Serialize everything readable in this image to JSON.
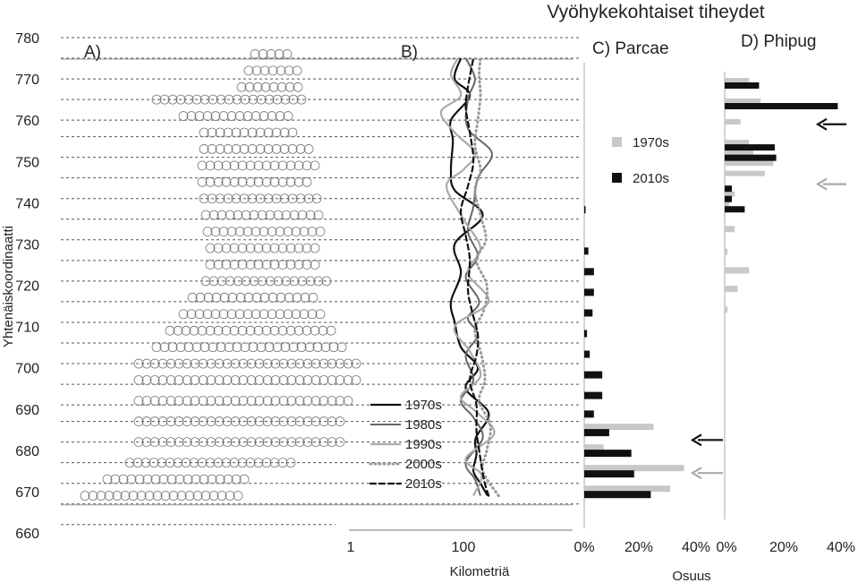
{
  "chart_data": {
    "type": "multi-panel",
    "title": "Vyöhykekohtaiset tiheydet",
    "y_axis": {
      "label": "Yhtenäiskoordinaatti",
      "ticks": [
        780,
        770,
        760,
        750,
        740,
        730,
        720,
        710,
        700,
        690,
        680,
        670,
        660
      ],
      "range": [
        660,
        780
      ]
    },
    "zone_boundaries": [
      662,
      667,
      672,
      677,
      682,
      687,
      691,
      696,
      701,
      706,
      711,
      716,
      721,
      726,
      731,
      736,
      741,
      746,
      751,
      756,
      760,
      765,
      770,
      775,
      780
    ],
    "panels": {
      "A": {
        "label": "A)",
        "description_type": "map"
      },
      "B": {
        "label": "B)",
        "type": "line",
        "xlabel": "Kilometriä",
        "x_ticks": [
          "1",
          "100"
        ],
        "x_scale": "log",
        "legend": [
          "1970s",
          "1980s",
          "1990s",
          "2000s",
          "2010s"
        ],
        "series": [
          {
            "name": "1970s",
            "points": [
              [
                268,
                669
              ],
              [
                200,
                672
              ],
              [
                150,
                675
              ],
              [
                170,
                679
              ],
              [
                165,
                683
              ],
              [
                280,
                689
              ],
              [
                110,
                695
              ],
              [
                180,
                700
              ],
              [
                90,
                705
              ],
              [
                70,
                711
              ],
              [
                60,
                716
              ],
              [
                90,
                723
              ],
              [
                70,
                730
              ],
              [
                220,
                737
              ],
              [
                70,
                743
              ],
              [
                60,
                748
              ],
              [
                65,
                755
              ],
              [
                60,
                760
              ],
              [
                130,
                766
              ],
              [
                70,
                770
              ],
              [
                90,
                775
              ]
            ]
          },
          {
            "name": "1980s",
            "points": [
              [
                200,
                669
              ],
              [
                160,
                673
              ],
              [
                110,
                677
              ],
              [
                220,
                683
              ],
              [
                150,
                688
              ],
              [
                90,
                692
              ],
              [
                150,
                697
              ],
              [
                110,
                703
              ],
              [
                180,
                708
              ],
              [
                120,
                712
              ],
              [
                190,
                716
              ],
              [
                110,
                722
              ],
              [
                180,
                727
              ],
              [
                120,
                733
              ],
              [
                150,
                739
              ],
              [
                180,
                746
              ],
              [
                320,
                752
              ],
              [
                120,
                758
              ],
              [
                120,
                765
              ],
              [
                160,
                770
              ],
              [
                110,
                775
              ]
            ]
          },
          {
            "name": "1990s",
            "points": [
              [
                150,
                669
              ],
              [
                210,
                674
              ],
              [
                110,
                678
              ],
              [
                350,
                684
              ],
              [
                180,
                689
              ],
              [
                90,
                693
              ],
              [
                200,
                698
              ],
              [
                130,
                704
              ],
              [
                70,
                710
              ],
              [
                280,
                716
              ],
              [
                120,
                723
              ],
              [
                200,
                729
              ],
              [
                100,
                736
              ],
              [
                50,
                744
              ],
              [
                100,
                748
              ],
              [
                160,
                752
              ],
              [
                70,
                757
              ],
              [
                40,
                762
              ],
              [
                90,
                766
              ],
              [
                60,
                771
              ],
              [
                80,
                775
              ]
            ]
          },
          {
            "name": "2000s",
            "points": [
              [
                420,
                669
              ],
              [
                220,
                675
              ],
              [
                260,
                680
              ],
              [
                300,
                686
              ],
              [
                190,
                692
              ],
              [
                240,
                697
              ],
              [
                210,
                703
              ],
              [
                160,
                709
              ],
              [
                230,
                714
              ],
              [
                260,
                720
              ],
              [
                170,
                726
              ],
              [
                250,
                731
              ],
              [
                200,
                737
              ],
              [
                160,
                743
              ],
              [
                200,
                748
              ],
              [
                160,
                754
              ],
              [
                180,
                760
              ],
              [
                200,
                766
              ],
              [
                190,
                771
              ],
              [
                200,
                775
              ]
            ]
          },
          {
            "name": "2010s",
            "points": [
              [
                280,
                669
              ],
              [
                230,
                673
              ],
              [
                190,
                680
              ],
              [
                170,
                685
              ],
              [
                170,
                691
              ],
              [
                130,
                697
              ],
              [
                170,
                703
              ],
              [
                180,
                708
              ],
              [
                140,
                714
              ],
              [
                120,
                719
              ],
              [
                130,
                726
              ],
              [
                110,
                732
              ],
              [
                90,
                738
              ],
              [
                120,
                744
              ],
              [
                150,
                750
              ],
              [
                130,
                757
              ],
              [
                110,
                763
              ],
              [
                120,
                768
              ],
              [
                150,
                775
              ]
            ]
          }
        ]
      },
      "C": {
        "label": "C) Parcae",
        "type": "bar",
        "xlabel": "Osuus",
        "x_ticks": [
          "0%",
          "20%",
          "40%"
        ],
        "xlim": [
          0,
          40
        ],
        "legend": [
          "1970s",
          "2010s"
        ],
        "zones_y": [
          669.5,
          674.5,
          679.5,
          684.5,
          689,
          693.5,
          698.5,
          703.5,
          708.5,
          713.5,
          718.5,
          723.5,
          728.5,
          733.5,
          738.5,
          743.5,
          748.5,
          753.5,
          758,
          762.5,
          767.5,
          772.5,
          777.5
        ],
        "series": [
          {
            "name": "1970s",
            "values": [
              31,
              36,
              7,
              25,
              0,
              0,
              0,
              0,
              0,
              0,
              0,
              0,
              0,
              0,
              0,
              0,
              0,
              0,
              0,
              0,
              0,
              0,
              0
            ]
          },
          {
            "name": "2010s",
            "values": [
              24,
              18,
              17,
              9,
              3.5,
              6.5,
              6.5,
              2,
              1,
              3,
              3.5,
              3.5,
              1.5,
              0,
              0.5,
              0,
              0,
              0,
              0,
              0,
              0,
              0,
              0
            ]
          }
        ],
        "arrows": [
          {
            "color": "black",
            "y": 682.5
          },
          {
            "color": "gray",
            "y": 674.5
          }
        ]
      },
      "D": {
        "label": "D) Phipug",
        "type": "bar",
        "x_ticks": [
          "0%",
          "20%",
          "40%"
        ],
        "xlim": [
          0,
          40
        ],
        "zones_y": [
          738.5,
          741,
          743.5,
          746,
          748.5,
          751,
          753.5,
          756,
          758.5,
          761,
          763.5,
          766,
          768.5
        ],
        "series": [
          {
            "name": "1970s",
            "values": [
              1.5,
              3.5,
              0,
              14,
              17,
              10,
              8.5,
              0,
              5.5,
              0,
              12.5,
              0,
              8.5
            ]
          },
          {
            "name": "2010s",
            "values": [
              7,
              2.5,
              2.5,
              0,
              0,
              18,
              17.5,
              0,
              0,
              0,
              39.5,
              0,
              12
            ]
          }
        ],
        "extra_gray": [
          {
            "y": 733.5,
            "value": 3.5
          },
          {
            "y": 728,
            "value": 1
          },
          {
            "y": 723.5,
            "value": 8.5
          },
          {
            "y": 719,
            "value": 4.5
          },
          {
            "y": 714,
            "value": 1
          }
        ],
        "arrows": [
          {
            "color": "black",
            "y": 759
          },
          {
            "color": "gray",
            "y": 744.5
          }
        ]
      }
    }
  }
}
